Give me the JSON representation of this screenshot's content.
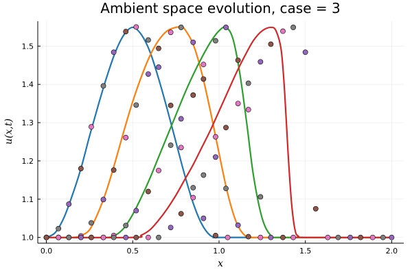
{
  "chart_data": {
    "type": "line",
    "title": "Ambient space evolution, case = 3",
    "xlabel": "x",
    "ylabel": "u(x,t)",
    "xlim": [
      -0.05,
      2.07
    ],
    "ylim": [
      0.985,
      1.565
    ],
    "xticks": [
      0.0,
      0.5,
      1.0,
      1.5,
      2.0
    ],
    "xtick_labels": [
      "0.0",
      "0.5",
      "1.0",
      "1.5",
      "2.0"
    ],
    "yticks": [
      1.0,
      1.1,
      1.2,
      1.3,
      1.4,
      1.5
    ],
    "ytick_labels": [
      "1.0",
      "1.1",
      "1.2",
      "1.3",
      "1.4",
      "1.5"
    ],
    "grid": true,
    "legend": "none",
    "series": [
      {
        "color": "#1f77b4",
        "curve": {
          "x": [
            0.0,
            0.05,
            0.1,
            0.15,
            0.2,
            0.25,
            0.3,
            0.35,
            0.4,
            0.45,
            0.5,
            0.55,
            0.6,
            0.65,
            0.7,
            0.75,
            0.8,
            0.85,
            0.9,
            0.95,
            1.0,
            1.05,
            2.0
          ],
          "y": [
            1.0,
            1.012,
            1.05,
            1.11,
            1.18,
            1.265,
            1.345,
            1.42,
            1.485,
            1.53,
            1.549,
            1.53,
            1.485,
            1.415,
            1.335,
            1.25,
            1.165,
            1.09,
            1.035,
            1.005,
            1.0,
            1.0,
            1.0
          ]
        },
        "markers": {
          "x": [
            0.0,
            0.07,
            0.13,
            0.2,
            0.26,
            0.33,
            0.39,
            0.46,
            0.52,
            0.59,
            0.65,
            0.72,
            0.78,
            0.85,
            0.91,
            0.98,
            1.05
          ],
          "y": [
            1.0,
            1.023,
            1.087,
            1.18,
            1.289,
            1.396,
            1.484,
            1.538,
            1.55,
            1.516,
            1.445,
            1.345,
            1.235,
            1.13,
            1.05,
            1.005,
            1.0
          ]
        }
      },
      {
        "color": "#ff7f0e",
        "curve": {
          "x": [
            0.0,
            0.15,
            0.2,
            0.25,
            0.3,
            0.35,
            0.4,
            0.45,
            0.5,
            0.55,
            0.6,
            0.65,
            0.7,
            0.75,
            0.78,
            0.8,
            0.85,
            0.9,
            0.95,
            1.0,
            1.05,
            1.1,
            1.15,
            1.2,
            1.25,
            2.0
          ],
          "y": [
            1.0,
            1.0,
            1.005,
            1.02,
            1.065,
            1.125,
            1.2,
            1.28,
            1.355,
            1.42,
            1.475,
            1.515,
            1.54,
            1.549,
            1.549,
            1.545,
            1.505,
            1.43,
            1.33,
            1.22,
            1.115,
            1.04,
            1.005,
            1.0,
            1.0,
            1.0
          ]
        },
        "markers": {
          "x": [
            0.0,
            0.07,
            0.13,
            0.2,
            0.26,
            0.33,
            0.39,
            0.46,
            0.52,
            0.59,
            0.65,
            0.72,
            0.78,
            0.85,
            0.91,
            0.98,
            1.04,
            1.11,
            1.17,
            1.24
          ],
          "y": [
            1.0,
            1.0,
            1.0,
            1.004,
            1.038,
            1.099,
            1.176,
            1.261,
            1.346,
            1.427,
            1.494,
            1.536,
            1.549,
            1.51,
            1.414,
            1.263,
            1.128,
            1.032,
            1.002,
            1.0
          ]
        }
      },
      {
        "color": "#2ca02c",
        "curve": {
          "x": [
            0.0,
            0.35,
            0.4,
            0.45,
            0.5,
            0.55,
            0.6,
            0.65,
            0.7,
            0.75,
            0.8,
            0.85,
            0.9,
            0.95,
            1.0,
            1.04,
            1.08,
            1.12,
            1.16,
            1.2,
            1.25,
            1.3,
            1.35,
            2.0
          ],
          "y": [
            1.0,
            1.0,
            1.006,
            1.025,
            1.06,
            1.105,
            1.155,
            1.21,
            1.265,
            1.32,
            1.375,
            1.425,
            1.47,
            1.51,
            1.54,
            1.549,
            1.52,
            1.43,
            1.3,
            1.16,
            1.05,
            1.005,
            1.0,
            1.0
          ]
        },
        "markers": {
          "x": [
            0.0,
            0.07,
            0.13,
            0.2,
            0.26,
            0.33,
            0.39,
            0.46,
            0.52,
            0.59,
            0.65,
            0.72,
            0.78,
            0.85,
            0.91,
            0.98,
            1.04,
            1.11,
            1.17,
            1.24,
            1.3,
            1.37,
            1.43
          ],
          "y": [
            1.0,
            1.0,
            1.0,
            1.0,
            1.0,
            1.0,
            1.005,
            1.031,
            1.07,
            1.12,
            1.175,
            1.241,
            1.31,
            1.372,
            1.452,
            1.514,
            1.549,
            1.463,
            1.334,
            1.106,
            1.0,
            1.0,
            1.0
          ]
        }
      },
      {
        "color": "#d62728",
        "curve": {
          "x": [
            0.0,
            0.5,
            0.55,
            0.6,
            0.65,
            0.7,
            0.75,
            0.8,
            0.85,
            0.9,
            0.95,
            1.0,
            1.05,
            1.1,
            1.15,
            1.2,
            1.25,
            1.3,
            1.33,
            1.36,
            1.38,
            1.4,
            1.42,
            1.44,
            1.46,
            1.5,
            2.0
          ],
          "y": [
            1.0,
            1.0,
            1.006,
            1.02,
            1.045,
            1.075,
            1.11,
            1.15,
            1.19,
            1.235,
            1.28,
            1.33,
            1.38,
            1.43,
            1.475,
            1.515,
            1.54,
            1.549,
            1.54,
            1.49,
            1.38,
            1.22,
            1.09,
            1.02,
            1.003,
            1.0,
            1.0
          ]
        },
        "markers": {
          "x": [
            0.0,
            0.07,
            0.13,
            0.2,
            0.26,
            0.33,
            0.39,
            0.46,
            0.52,
            0.59,
            0.65,
            0.72,
            0.78,
            0.85,
            0.91,
            0.98,
            1.04,
            1.11,
            1.17,
            1.24,
            1.3,
            1.37,
            1.43,
            1.5,
            1.56,
            1.63,
            1.69,
            1.76,
            1.82,
            1.89,
            1.95,
            2.0
          ],
          "y": [
            1.0,
            1.0,
            1.0,
            1.0,
            1.0,
            1.0,
            1.0,
            1.0,
            1.0,
            1.0,
            1.0,
            1.026,
            1.062,
            1.104,
            1.163,
            1.21,
            1.287,
            1.35,
            1.403,
            1.459,
            1.505,
            1.539,
            1.549,
            1.484,
            1.075,
            1.0,
            1.0,
            1.0,
            1.0,
            1.0,
            1.0,
            1.0
          ]
        }
      }
    ],
    "marker_colors": [
      "#e377c2",
      "#7f7f7f",
      "#9467bd",
      "#8c564b"
    ]
  }
}
